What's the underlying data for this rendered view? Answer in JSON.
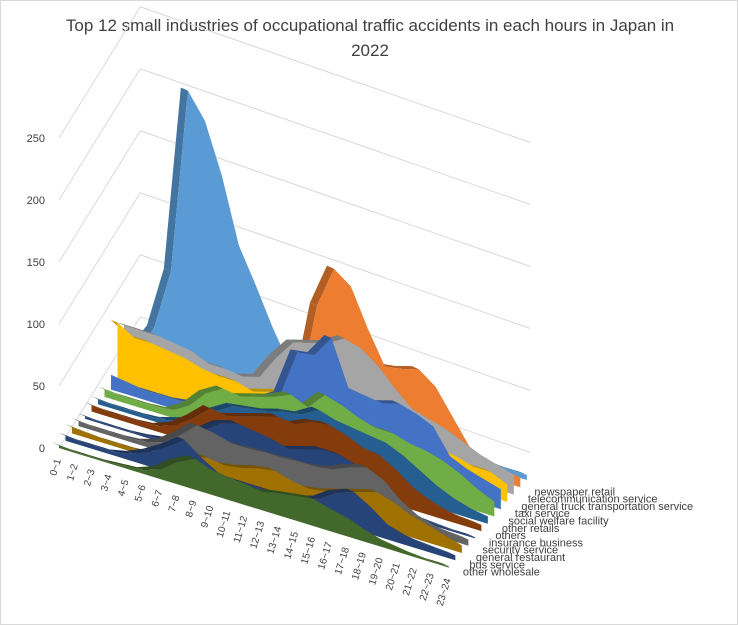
{
  "chart_data": {
    "type": "area",
    "variant": "3d",
    "title": "Top 12 small industries of occupational traffic accidents in each hours in Japan in 2022",
    "categories": [
      "0~1",
      "1~2",
      "2~3",
      "3~4",
      "4~5",
      "5~6",
      "6~7",
      "7~8",
      "8~9",
      "9~10",
      "10~11",
      "11~12",
      "12~13",
      "13~14",
      "14~15",
      "15~16",
      "16~17",
      "17~18",
      "18~19",
      "19~20",
      "20~21",
      "21~22",
      "22~23",
      "23~24"
    ],
    "y_ticks": [
      "0",
      "50",
      "100",
      "150",
      "200",
      "250"
    ],
    "ylim": [
      0,
      250
    ],
    "series": [
      {
        "name": "other wholesale",
        "color": "#43682b",
        "values": [
          2,
          1,
          1,
          1,
          2,
          3,
          8,
          18,
          25,
          20,
          18,
          17,
          15,
          18,
          20,
          22,
          18,
          15,
          10,
          6,
          4,
          2,
          1,
          1
        ]
      },
      {
        "name": "bus service",
        "color": "#264478",
        "values": [
          4,
          3,
          3,
          3,
          6,
          12,
          20,
          30,
          20,
          12,
          10,
          10,
          10,
          10,
          12,
          16,
          25,
          30,
          22,
          12,
          8,
          6,
          5,
          4
        ]
      },
      {
        "name": "general restaurant",
        "color": "#9e7100",
        "values": [
          5,
          4,
          3,
          3,
          3,
          4,
          6,
          10,
          14,
          12,
          14,
          18,
          20,
          16,
          14,
          16,
          20,
          24,
          28,
          24,
          18,
          14,
          10,
          6
        ]
      },
      {
        "name": "security service",
        "color": "#636363",
        "values": [
          4,
          3,
          3,
          3,
          4,
          8,
          18,
          30,
          28,
          24,
          24,
          25,
          25,
          26,
          26,
          28,
          34,
          38,
          32,
          20,
          12,
          8,
          6,
          5
        ]
      },
      {
        "name": "insurance business",
        "color": "#264478",
        "values": [
          2,
          1,
          1,
          1,
          2,
          4,
          10,
          20,
          30,
          34,
          32,
          30,
          26,
          30,
          34,
          34,
          30,
          22,
          12,
          6,
          3,
          2,
          1,
          1
        ]
      },
      {
        "name": "others",
        "color": "#843c0c",
        "values": [
          5,
          4,
          4,
          4,
          5,
          10,
          20,
          32,
          30,
          34,
          38,
          42,
          40,
          46,
          48,
          44,
          38,
          36,
          28,
          18,
          12,
          8,
          6,
          5
        ]
      },
      {
        "name": "other retails",
        "color": "#255e91",
        "values": [
          4,
          3,
          3,
          3,
          4,
          8,
          12,
          24,
          32,
          34,
          36,
          40,
          42,
          50,
          46,
          44,
          42,
          40,
          34,
          26,
          18,
          12,
          8,
          6
        ]
      },
      {
        "name": "social welfare facility",
        "color": "#70ad47",
        "values": [
          6,
          5,
          5,
          5,
          6,
          14,
          28,
          36,
          34,
          38,
          42,
          48,
          42,
          56,
          52,
          46,
          42,
          42,
          38,
          36,
          32,
          26,
          18,
          12
        ]
      },
      {
        "name": "taxi service",
        "color": "#4472c4",
        "values": [
          12,
          10,
          8,
          8,
          8,
          10,
          14,
          18,
          26,
          30,
          38,
          76,
          78,
          96,
          60,
          58,
          56,
          60,
          56,
          50,
          30,
          24,
          20,
          16
        ]
      },
      {
        "name": "general truck transportation service",
        "color": "#ffc000",
        "values": [
          48,
          40,
          40,
          38,
          36,
          32,
          30,
          30,
          26,
          30,
          34,
          38,
          40,
          44,
          40,
          34,
          30,
          24,
          24,
          26,
          24,
          20,
          20,
          14
        ]
      },
      {
        "name": "telecommunication service",
        "color": "#a5a5a5",
        "values": [
          40,
          40,
          40,
          38,
          36,
          30,
          30,
          28,
          32,
          52,
          68,
          72,
          76,
          84,
          80,
          70,
          56,
          44,
          40,
          36,
          30,
          24,
          20,
          16
        ]
      },
      {
        "name": "newspaper retail",
        "color": "#ed7d31",
        "values": [
          12,
          8,
          6,
          8,
          10,
          6,
          6,
          8,
          10,
          12,
          24,
          96,
          130,
          120,
          90,
          64,
          66,
          70,
          60,
          40,
          20,
          14,
          10,
          8
        ]
      },
      {
        "name": "",
        "color": "#5b9bd5",
        "values": [
          8,
          30,
          80,
          230,
          210,
          170,
          118,
          90,
          60,
          34,
          20,
          16,
          14,
          12,
          10,
          10,
          8,
          6,
          6,
          6,
          6,
          5,
          4,
          4
        ]
      }
    ]
  }
}
